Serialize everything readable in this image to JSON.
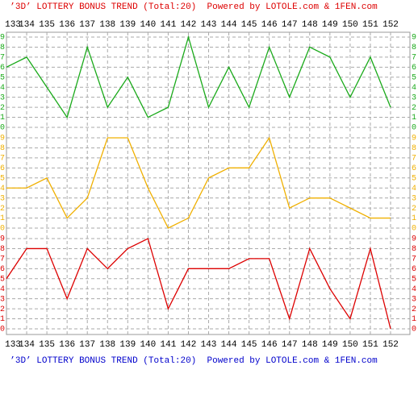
{
  "chart_data": {
    "type": "line",
    "title": "’3D’ LOTTERY BONUS TREND (Total:20)  Powered by LOTOLE.com & 1FEN.com",
    "categories": [
      "133",
      "134",
      "135",
      "136",
      "137",
      "138",
      "139",
      "140",
      "141",
      "142",
      "143",
      "144",
      "145",
      "146",
      "147",
      "148",
      "149",
      "150",
      "151",
      "152"
    ],
    "series": [
      {
        "color": "#1aaa1a",
        "values": [
          6,
          7,
          4,
          1,
          8,
          2,
          5,
          1,
          2,
          9,
          2,
          6,
          2,
          8,
          3,
          8,
          7,
          3,
          7,
          2
        ]
      },
      {
        "color": "#f0b000",
        "values": [
          4,
          4,
          5,
          1,
          3,
          9,
          9,
          4,
          0,
          1,
          5,
          6,
          6,
          9,
          2,
          3,
          3,
          2,
          1,
          1
        ]
      },
      {
        "color": "#dd0000",
        "values": [
          5,
          8,
          8,
          3,
          8,
          6,
          8,
          9,
          2,
          6,
          6,
          6,
          7,
          7,
          1,
          8,
          4,
          1,
          8,
          0
        ]
      }
    ],
    "ylim": [
      0,
      9
    ],
    "yticks": [
      0,
      1,
      2,
      3,
      4,
      5,
      6,
      7,
      8,
      9
    ],
    "grid": true
  }
}
